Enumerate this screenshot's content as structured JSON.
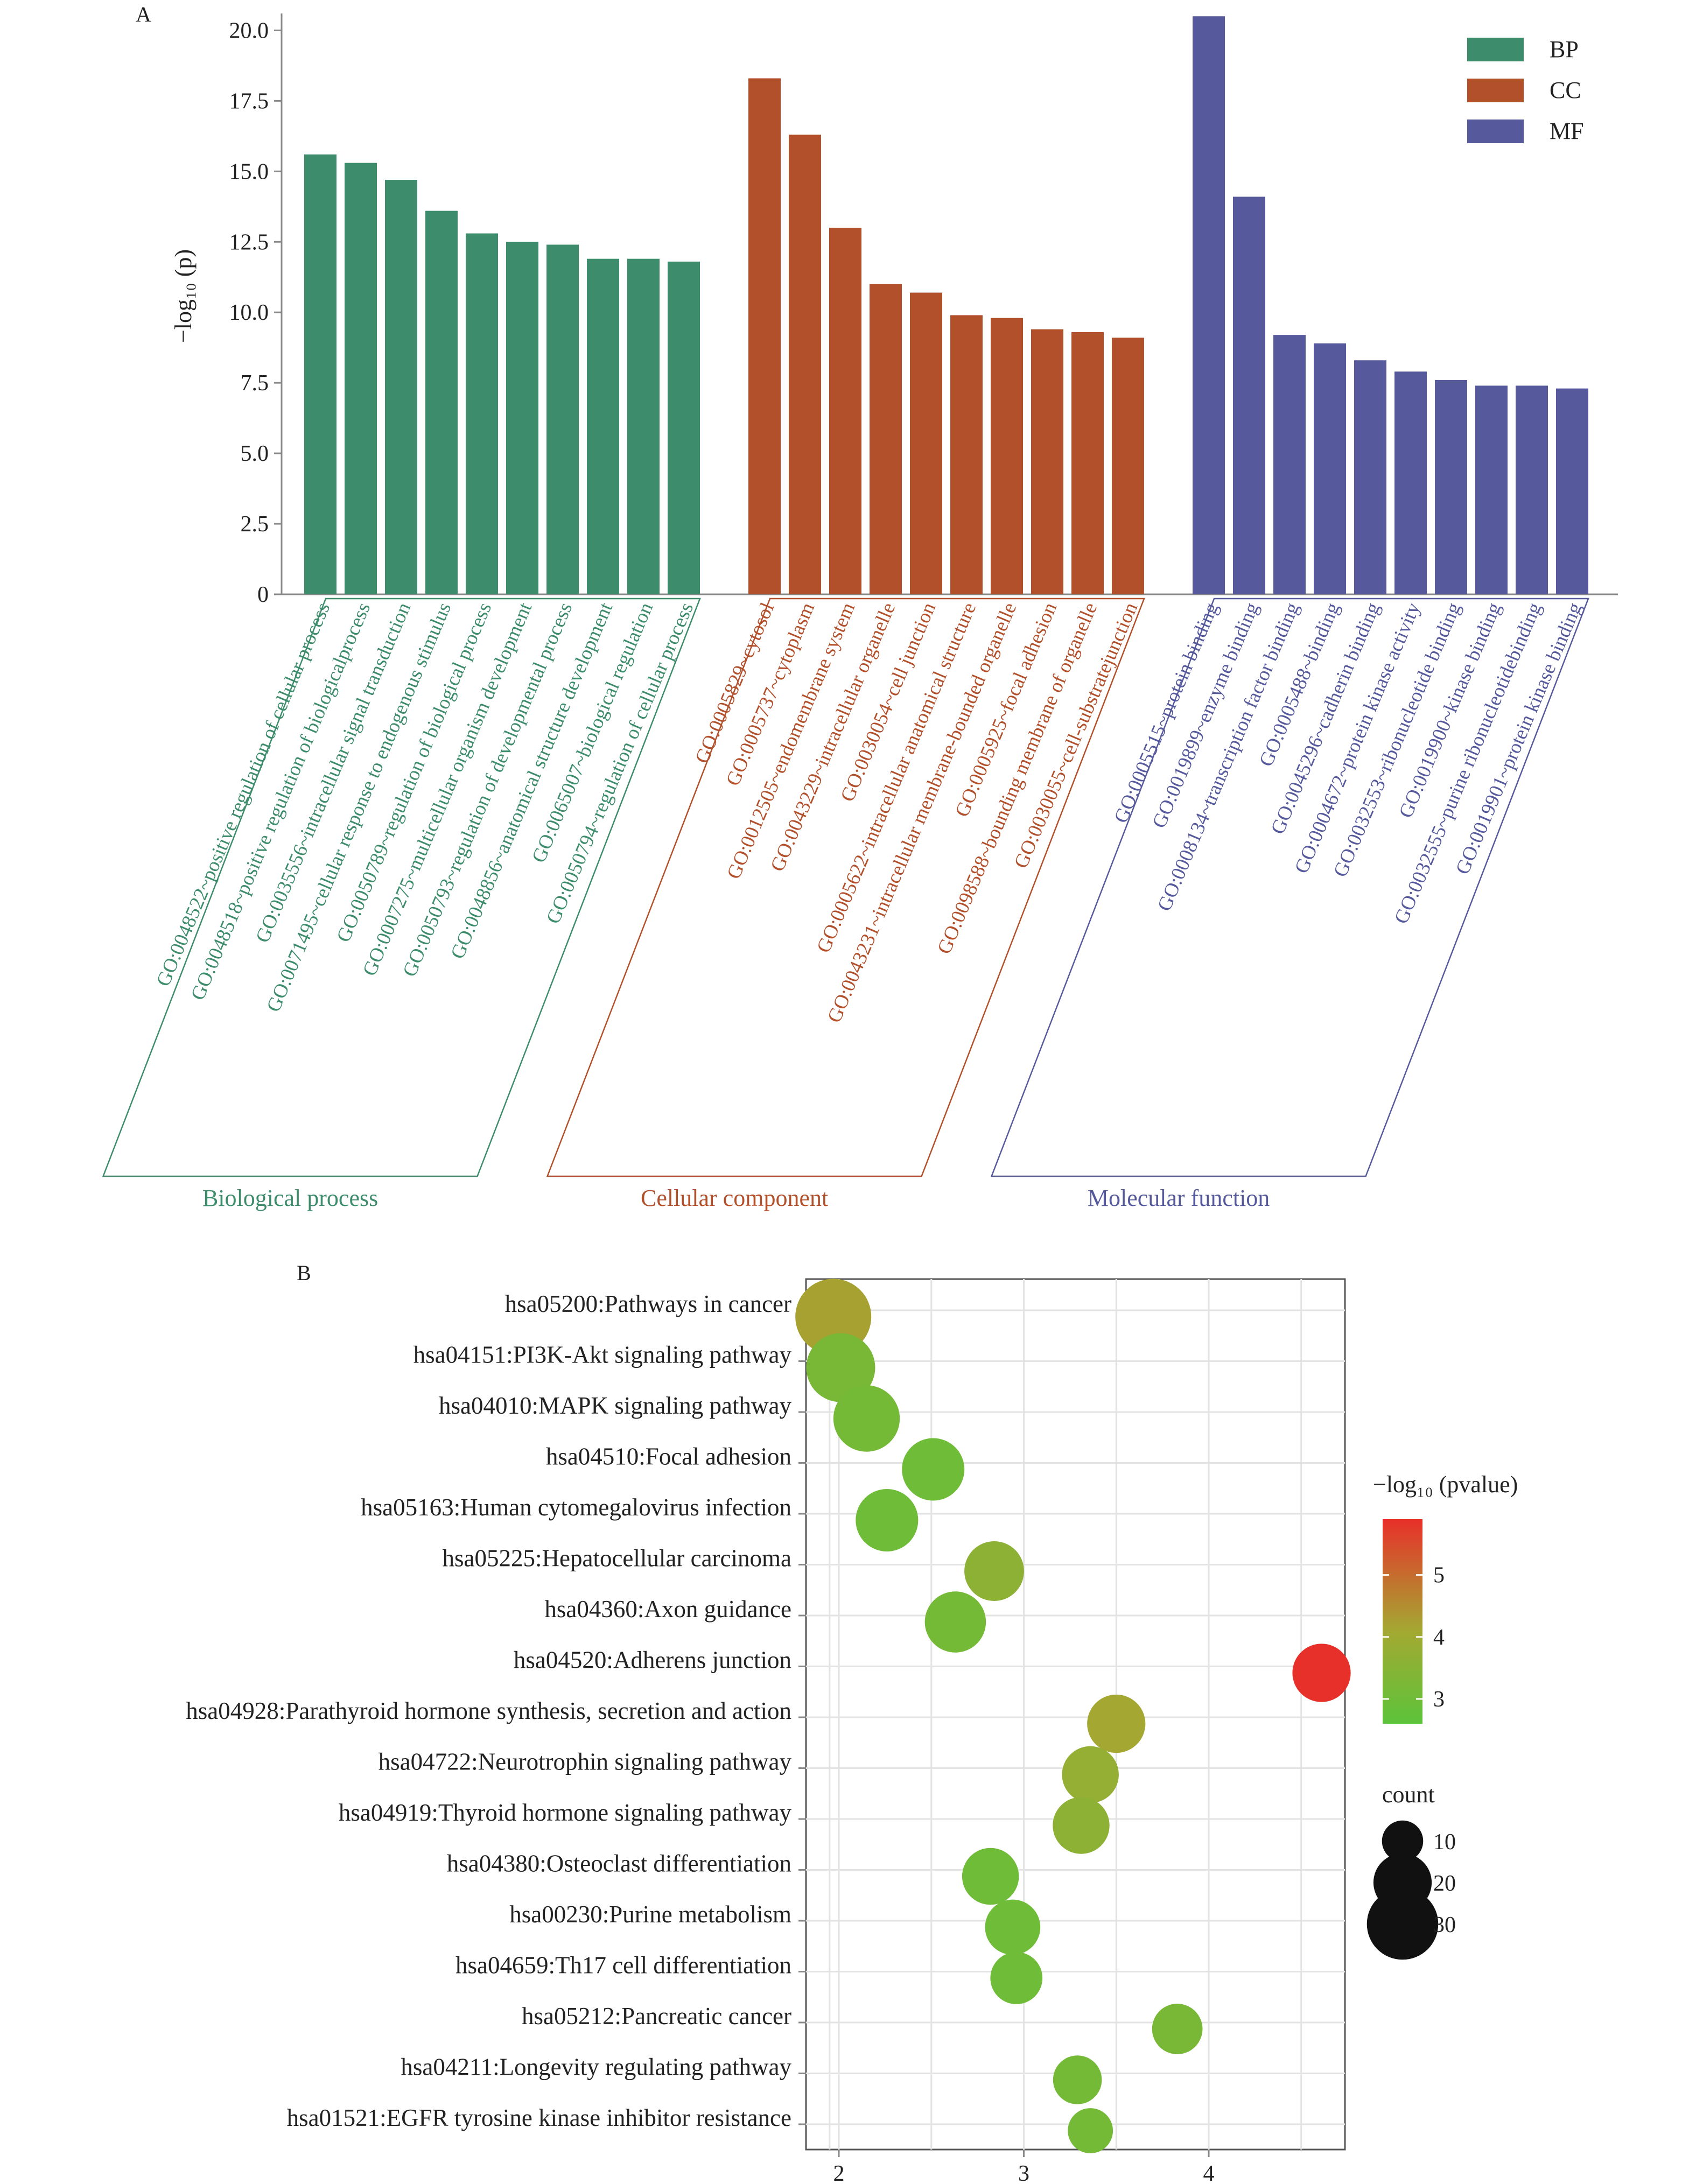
{
  "panel_labels": {
    "a": "A",
    "b": "B"
  },
  "colors": {
    "bp": "#3d8c6c",
    "cc": "#b3502c",
    "mf": "#565a9c",
    "axis": "#888888",
    "grid": "#e8e8e8",
    "text": "#222222"
  },
  "chart_data": [
    {
      "type": "bar",
      "panel": "A",
      "ylabel": "−log₁₀ (p)",
      "ylim": [
        0,
        20.6
      ],
      "yticks": [
        "0",
        "2.5",
        "5.0",
        "7.5",
        "10.0",
        "12.5",
        "15.0",
        "17.5",
        "20.0"
      ],
      "legend": [
        {
          "key": "bp",
          "label": "BP",
          "color": "#3d8c6c"
        },
        {
          "key": "cc",
          "label": "CC",
          "color": "#b3502c"
        },
        {
          "key": "mf",
          "label": "MF",
          "color": "#565a9c"
        }
      ],
      "groups": [
        {
          "key": "bp",
          "name": "Biological process",
          "color": "#3d8c6c",
          "categories": [
            "GO:0048522~positive regulation of cellular process",
            "GO:0048518~positive regulation of biologicalprocess",
            "GO:0035556~intracellular signal transduction",
            "GO:0071495~cellular response to endogenous stimulus",
            "GO:0050789~regulation of biological process",
            "GO:0007275~multicellular organism development",
            "GO:0050793~regulation of developmental process",
            "GO:0048856~anatomical structure development",
            "GO:0065007~biological regulation",
            "GO:0050794~regulation of cellular process"
          ],
          "values": [
            15.6,
            15.3,
            14.7,
            13.6,
            12.8,
            12.5,
            12.4,
            11.9,
            11.9,
            11.8
          ]
        },
        {
          "key": "cc",
          "name": "Cellular component",
          "color": "#b3502c",
          "categories": [
            "GO:0005829~cytosol",
            "GO:0005737~cytoplasm",
            "GO:0012505~endomembrane system",
            "GO:0043229~intracellular organelle",
            "GO:0030054~cell junction",
            "GO:0005622~intracellular anatomical structure",
            "GO:0043231~intracellular membrane-bounded organelle",
            "GO:0005925~focal adhesion",
            "GO:0098588~bounding membrane of organelle",
            "GO:0030055~cell-substratejunction"
          ],
          "values": [
            18.3,
            16.3,
            13.0,
            11.0,
            10.7,
            9.9,
            9.8,
            9.4,
            9.3,
            9.1
          ]
        },
        {
          "key": "mf",
          "name": "Molecular function",
          "color": "#565a9c",
          "categories": [
            "GO:0005515~protein binding",
            "GO:0019899~enzyme binding",
            "GO:0008134~transcription factor binding",
            "GO:0005488~binding",
            "GO:0045296~cadherin binding",
            "GO:0004672~protein kinase activity",
            "GO:0032553~ribonucleotide binding",
            "GO:0019900~kinase binding",
            "GO:0032555~purine ribonucleotidebinding",
            "GO:0019901~protein kinase binding"
          ],
          "values": [
            20.5,
            14.1,
            9.2,
            8.9,
            8.3,
            7.9,
            7.6,
            7.4,
            7.4,
            7.3
          ]
        }
      ]
    },
    {
      "type": "scatter",
      "panel": "B",
      "categories": [
        "hsa05200:Pathways in cancer",
        "hsa04151:PI3K-Akt signaling pathway",
        "hsa04010:MAPK signaling pathway",
        "hsa04510:Focal adhesion",
        "hsa05163:Human cytomegalovirus infection",
        "hsa05225:Hepatocellular carcinoma",
        "hsa04360:Axon guidance",
        "hsa04520:Adherens junction",
        "hsa04928:Parathyroid hormone synthesis, secretion and action",
        "hsa04722:Neurotrophin signaling pathway",
        "hsa04919:Thyroid hormone signaling pathway",
        "hsa04380:Osteoclast differentiation",
        "hsa00230:Purine metabolism",
        "hsa04659:Th17 cell differentiation",
        "hsa05212:Pancreatic cancer",
        "hsa04211:Longevity regulating pathway",
        "hsa01521:EGFR tyrosine kinase inhibitor resistance"
      ],
      "x": [
        1.97,
        2.01,
        2.15,
        2.51,
        2.26,
        2.84,
        2.63,
        4.61,
        3.5,
        3.36,
        3.31,
        2.82,
        2.94,
        2.96,
        3.83,
        3.29,
        3.36
      ],
      "color_values": [
        4.2,
        3.2,
        3.1,
        3.0,
        3.0,
        3.6,
        3.1,
        5.9,
        4.1,
        3.8,
        3.6,
        3.0,
        3.0,
        3.0,
        3.2,
        3.1,
        3.1
      ],
      "count": [
        34,
        28,
        26,
        23,
        23,
        21,
        22,
        20,
        20,
        19,
        19,
        19,
        18,
        16,
        15,
        14,
        12
      ],
      "xlim": [
        1.85,
        4.75
      ],
      "xticks": [
        "2",
        "3",
        "4"
      ],
      "color_scale": {
        "title": "−log₁₀ (pvalue)",
        "min": 2.6,
        "max": 5.9,
        "low": "#5cc33a",
        "mid": "#a3a932",
        "high": "#e8302a",
        "ticks": [
          "3",
          "4",
          "5"
        ]
      },
      "size_legend": {
        "title": "count",
        "labels": [
          "10",
          "20",
          "30"
        ],
        "values": [
          10,
          20,
          30
        ]
      }
    }
  ]
}
